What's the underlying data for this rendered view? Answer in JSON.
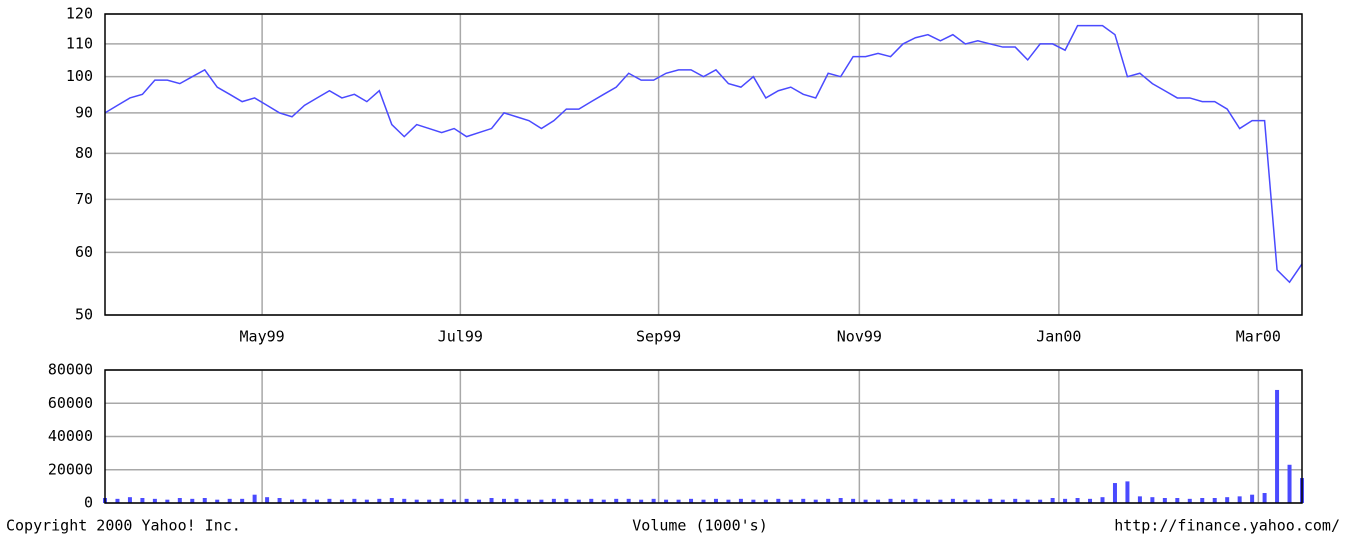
{
  "chart_data": [
    {
      "type": "line",
      "log_scale": true,
      "grid": true,
      "color": "#4a4aff",
      "xlim": [
        0,
        96
      ],
      "xticks": [
        {
          "value": 12.6,
          "label": "May99"
        },
        {
          "value": 28.5,
          "label": "Jul99"
        },
        {
          "value": 44.4,
          "label": "Sep99"
        },
        {
          "value": 60.5,
          "label": "Nov99"
        },
        {
          "value": 76.5,
          "label": "Jan00"
        },
        {
          "value": 92.5,
          "label": "Mar00"
        }
      ],
      "ylim": [
        50,
        120
      ],
      "yticks": [
        50,
        60,
        70,
        80,
        90,
        100,
        110,
        120
      ],
      "values": [
        90,
        92,
        94,
        95,
        99,
        99,
        98,
        100,
        102,
        97,
        95,
        93,
        94,
        92,
        90,
        89,
        92,
        94,
        96,
        94,
        95,
        93,
        96,
        87,
        84,
        87,
        86,
        85,
        86,
        84,
        85,
        86,
        90,
        89,
        88,
        86,
        88,
        91,
        91,
        93,
        95,
        97,
        101,
        99,
        99,
        101,
        102,
        102,
        100,
        102,
        98,
        97,
        100,
        94,
        96,
        97,
        95,
        94,
        101,
        100,
        106,
        106,
        107,
        106,
        110,
        112,
        113,
        111,
        113,
        110,
        111,
        110,
        109,
        109,
        105,
        110,
        110,
        108,
        116,
        116,
        116,
        113,
        100,
        101,
        98,
        96,
        94,
        94,
        93,
        93,
        91,
        86,
        88,
        88,
        57,
        55,
        58
      ]
    },
    {
      "type": "bar",
      "grid": true,
      "color": "#4a4aff",
      "ylabel": "Volume (1000's)",
      "annotations": [
        "Copyright 2000 Yahoo! Inc.",
        "http://finance.yahoo.com/"
      ],
      "xlim": [
        0,
        96
      ],
      "ylim": [
        0,
        80000
      ],
      "yticks": [
        0,
        20000,
        40000,
        60000,
        80000
      ],
      "values": [
        3000,
        2500,
        3500,
        3000,
        2500,
        2000,
        3000,
        2500,
        3000,
        2000,
        2500,
        2500,
        5000,
        3500,
        3000,
        2000,
        2500,
        2000,
        2500,
        2000,
        2500,
        2000,
        2500,
        3000,
        2500,
        2000,
        2000,
        2500,
        2000,
        2500,
        2000,
        3000,
        2500,
        2500,
        2000,
        2000,
        2500,
        2500,
        2000,
        2500,
        2000,
        2500,
        2500,
        2000,
        2500,
        2000,
        2000,
        2500,
        2000,
        2500,
        2000,
        2500,
        2000,
        2000,
        2500,
        2000,
        2500,
        2000,
        2500,
        3000,
        2500,
        2000,
        2000,
        2500,
        2000,
        2500,
        2000,
        2000,
        2500,
        2000,
        2000,
        2500,
        2000,
        2500,
        2000,
        2000,
        3000,
        2500,
        3000,
        2500,
        3500,
        12000,
        13000,
        4000,
        3500,
        3000,
        3000,
        2500,
        3000,
        3000,
        3500,
        4000,
        5000,
        6000,
        68000,
        23000,
        15000
      ]
    }
  ]
}
